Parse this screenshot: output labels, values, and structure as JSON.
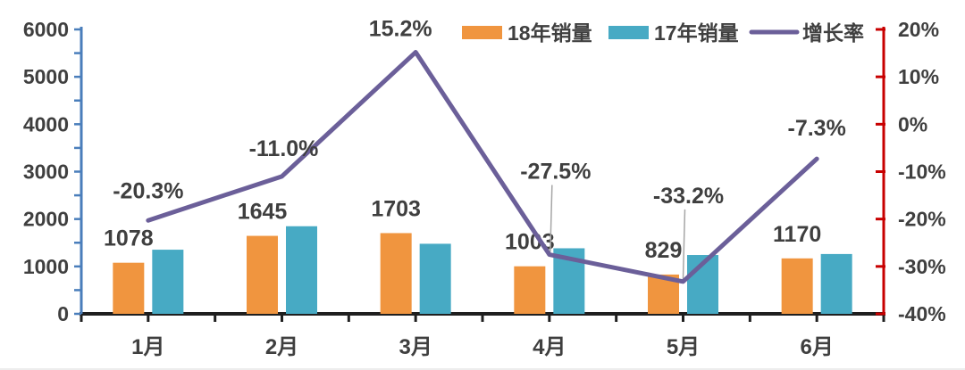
{
  "chart_data": {
    "type": "combo-bar-line",
    "title": "",
    "categories": [
      "1月",
      "2月",
      "3月",
      "4月",
      "5月",
      "6月"
    ],
    "series": [
      {
        "name": "18年销量",
        "type": "bar",
        "axis": "left",
        "color": "#F0953F",
        "values": [
          1078,
          1645,
          1703,
          1003,
          829,
          1170
        ],
        "data_labels": [
          "1078",
          "1645",
          "1703",
          "1003",
          "829",
          "1170"
        ]
      },
      {
        "name": "17年销量",
        "type": "bar",
        "axis": "left",
        "color": "#47AAC4",
        "values": [
          1353,
          1848,
          1478,
          1383,
          1241,
          1262
        ],
        "data_labels": []
      },
      {
        "name": "增长率",
        "type": "line",
        "axis": "right",
        "color": "#6B5F99",
        "values": [
          -20.3,
          -11.0,
          15.2,
          -27.5,
          -33.2,
          -7.3
        ],
        "data_labels": [
          "-20.3%",
          "-11.0%",
          "15.2%",
          "-27.5%",
          "-33.2%",
          "-7.3%"
        ]
      }
    ],
    "left_axis": {
      "min": 0,
      "max": 6000,
      "major_step": 1000,
      "minor_step": 500,
      "tick_labels": [
        "0",
        "1000",
        "2000",
        "3000",
        "4000",
        "5000",
        "6000"
      ],
      "color": "#4A7EBB"
    },
    "right_axis": {
      "min": -40,
      "max": 20,
      "major_step": 10,
      "tick_labels": [
        "20%",
        "10%",
        "0%",
        "-10%",
        "-20%",
        "-30%",
        "-40%"
      ],
      "color": "#C80000"
    },
    "x_axis": {
      "color": "#1F1F1F"
    },
    "legend": {
      "position": "top",
      "entries": [
        "18年销量",
        "17年销量",
        "增长率"
      ]
    },
    "grid": false,
    "background": "#FFFFFF",
    "text_color": "#3F3F3F",
    "leader_line_color": "#A6A6A6"
  }
}
